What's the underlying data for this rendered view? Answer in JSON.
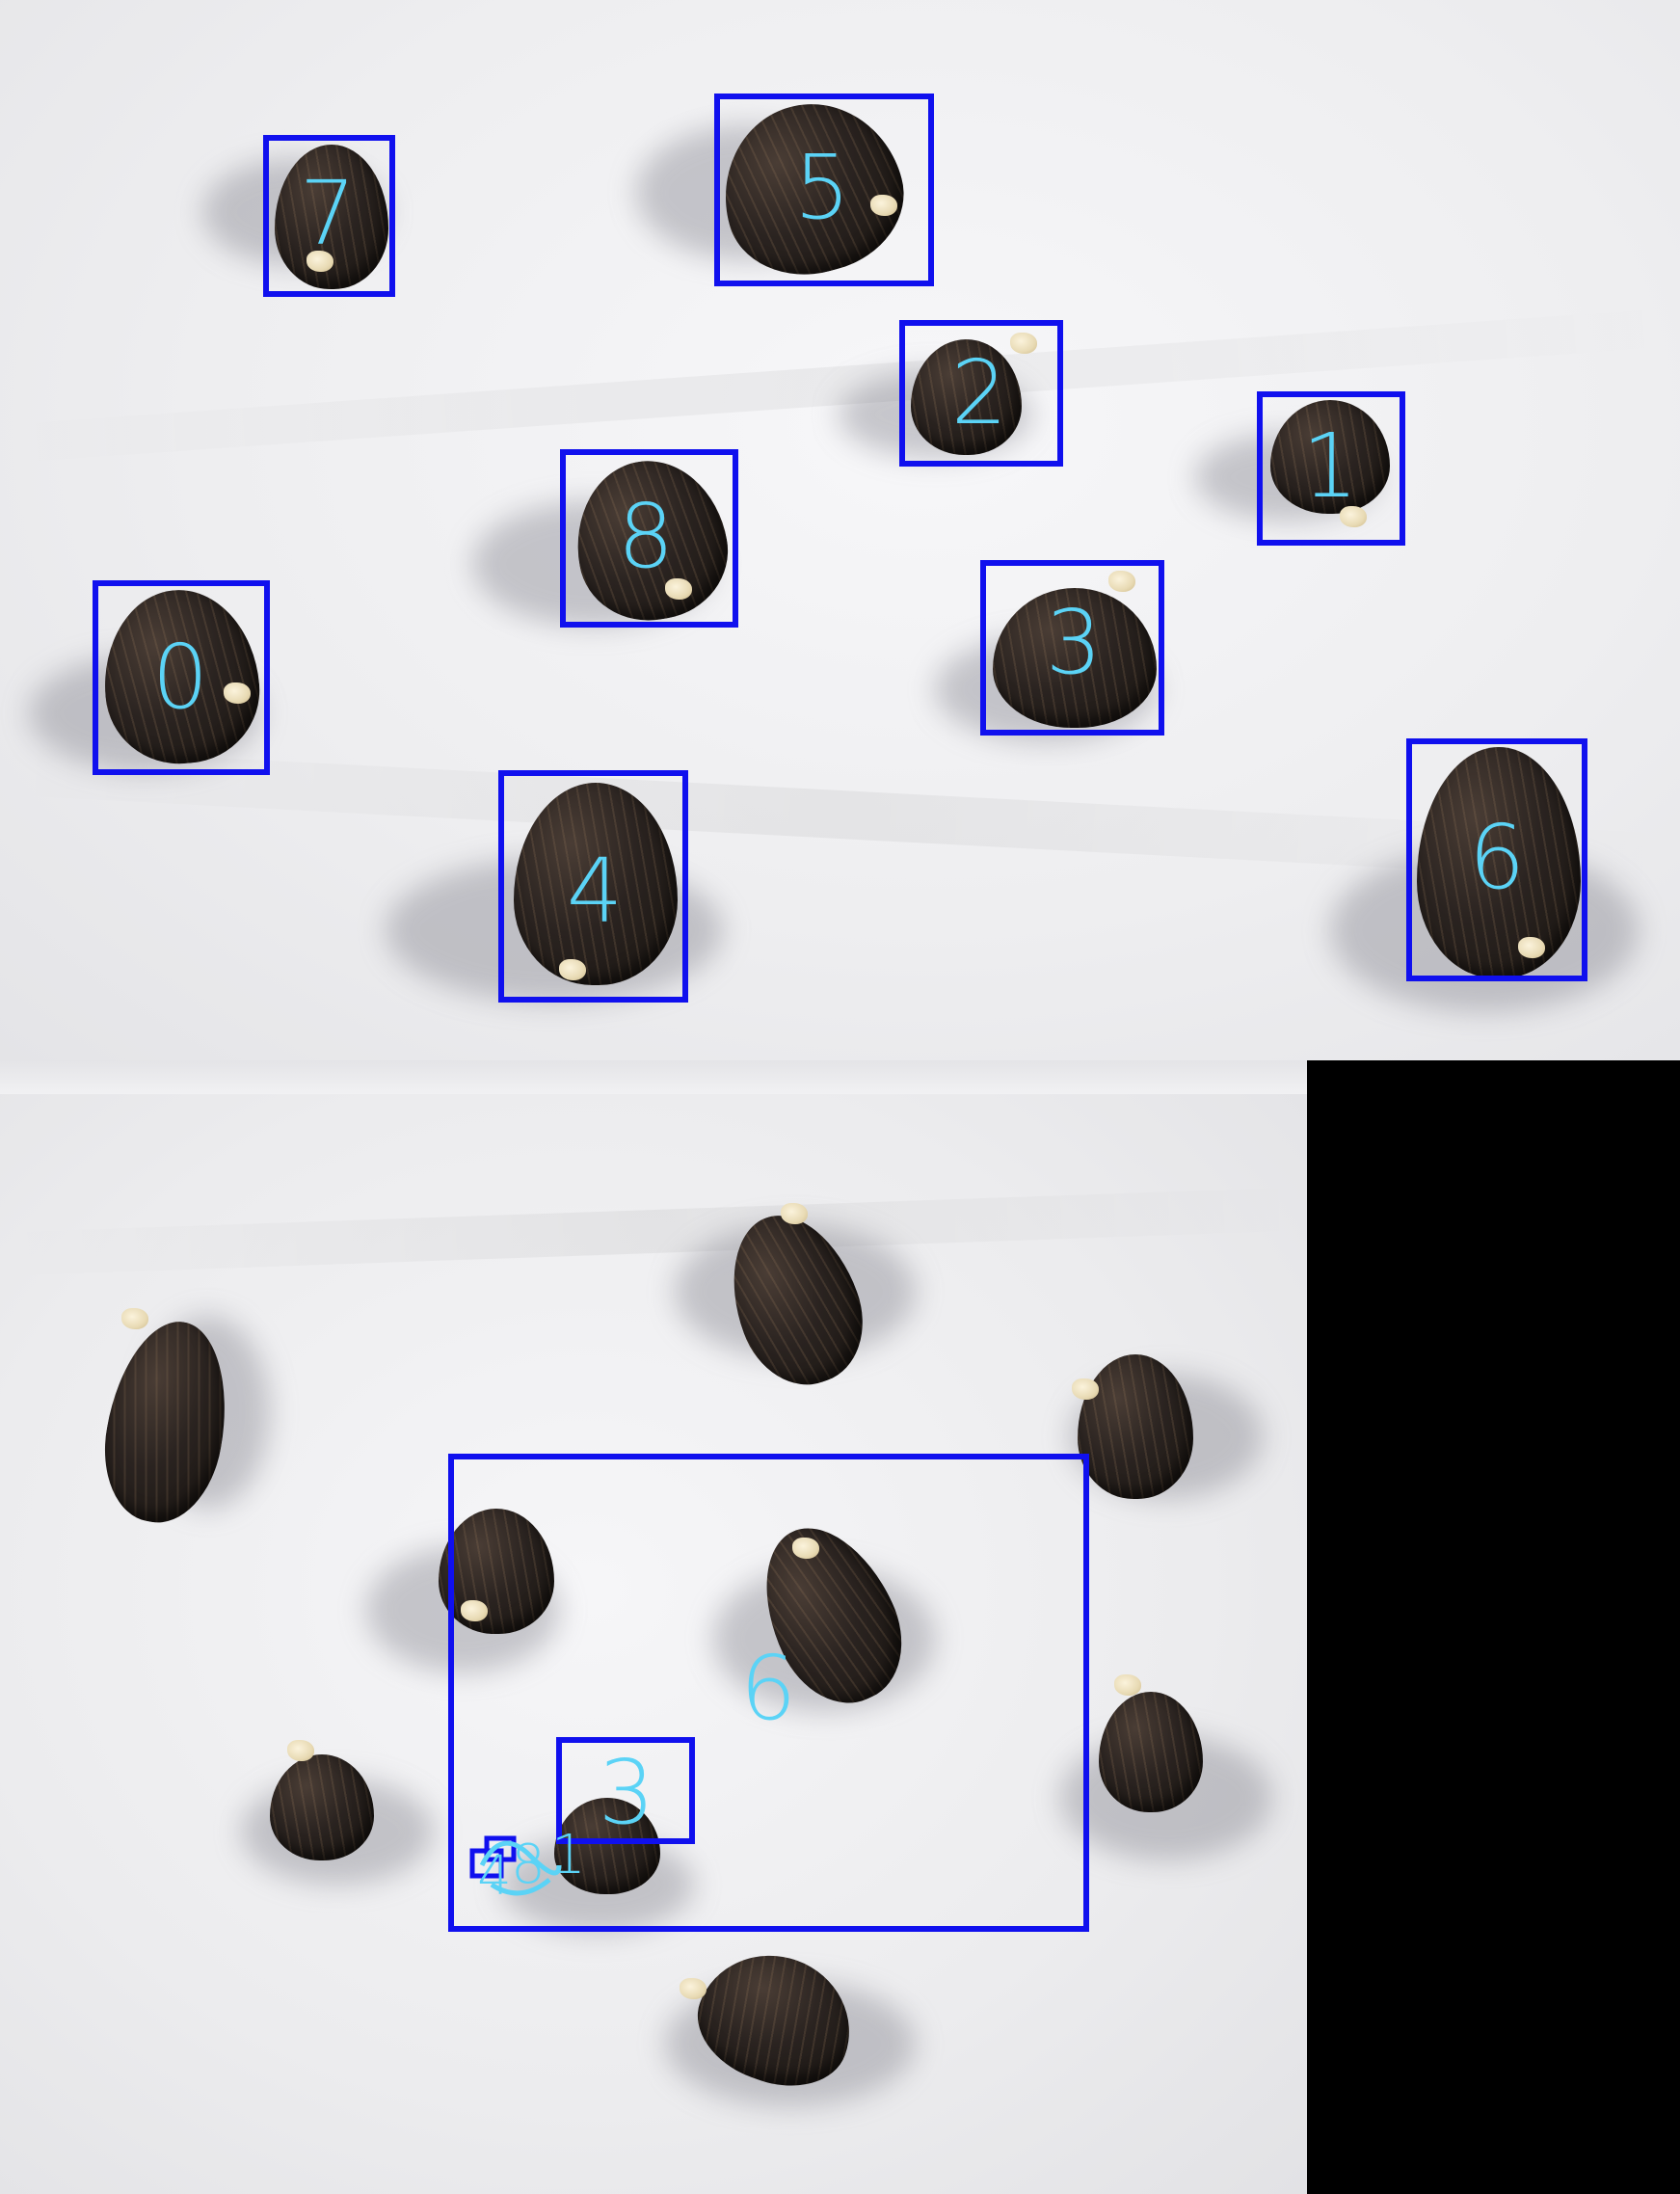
{
  "image": {
    "top_panel": {
      "labels": {
        "box_0": "0",
        "box_1": "1",
        "box_2": "2",
        "box_3": "3",
        "box_4": "4",
        "box_5": "5",
        "box_6": "6",
        "box_7": "7",
        "box_8": "8"
      }
    },
    "bottom_panel": {
      "labels": {
        "box_6": "6",
        "box_3": "3",
        "cluster_a": "4",
        "cluster_b": "8",
        "cluster_c": "1"
      }
    },
    "colors": {
      "box_border": "#1010ee",
      "label_text": "#5bd3f6",
      "background": "#f0f0f2",
      "seed": "#221c18",
      "sprout": "#e8dab4",
      "right_fill": "#000000"
    }
  }
}
